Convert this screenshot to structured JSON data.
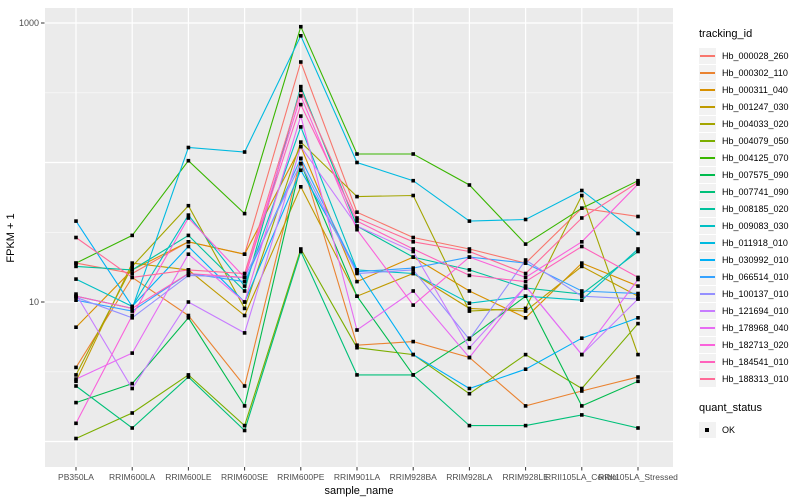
{
  "chart_data": {
    "type": "line",
    "title": "",
    "xlabel": "sample_name",
    "ylabel": "FPKM + 1",
    "y_scale": "log10",
    "ylim": [
      0.8,
      1250
    ],
    "grid": {
      "major_y": [
        1,
        10,
        100,
        1000
      ],
      "minor_y": [
        3.162,
        31.62,
        316.2
      ],
      "vertical_on_categories": true
    },
    "y_axis_ticks": [
      {
        "value": 1000,
        "label": "1000"
      },
      {
        "value": 10,
        "label": "10"
      }
    ],
    "legend_title": "tracking_id",
    "legend_position": "right",
    "quant_legend": {
      "title": "quant_status",
      "items": [
        {
          "label": "OK",
          "marker": "black-square"
        }
      ]
    },
    "panel_bg": "#EBEBEB",
    "grid_color": "#FFFFFF",
    "point_color": "#000000",
    "tick_label_color": "#4D4D4D",
    "categories": [
      "PB350LA",
      "RRIM600LA",
      "RRIM600LE",
      "RRIM600SE",
      "RRIM600PE",
      "RRIM901LA",
      "RRIM928BA",
      "RRIM928LA",
      "RRIM928LE",
      "RRII105LA_Control",
      "RRII105LA_Stressed"
    ],
    "series": [
      {
        "name": "Hb_000028_260",
        "color": "#F8766D",
        "values": [
          19,
          16,
          27,
          22,
          525,
          44,
          29,
          24,
          19,
          47,
          41
        ]
      },
      {
        "name": "Hb_000302_110",
        "color": "#EA8331",
        "values": [
          3.4,
          15,
          8,
          2.5,
          107,
          4.9,
          5.2,
          4,
          1.8,
          2.3,
          2.9
        ]
      },
      {
        "name": "Hb_000311_040",
        "color": "#D89000",
        "values": [
          6.6,
          17,
          27,
          22,
          130,
          14,
          21,
          12,
          7.7,
          19,
          13
        ]
      },
      {
        "name": "Hb_001247_030",
        "color": "#C09B00",
        "values": [
          2.7,
          19,
          17,
          8,
          67,
          11,
          16,
          9,
          8.6,
          18,
          11
        ]
      },
      {
        "name": "Hb_004033_020",
        "color": "#A3A500",
        "values": [
          3,
          18,
          49,
          9,
          140,
          57,
          58,
          8.6,
          9,
          58,
          4.2
        ]
      },
      {
        "name": "Hb_004079_050",
        "color": "#7CAE00",
        "values": [
          1.05,
          1.6,
          3,
          1.3,
          24,
          4.7,
          4.2,
          2.2,
          4.2,
          2.4,
          7
        ]
      },
      {
        "name": "Hb_004125_070",
        "color": "#39B600",
        "values": [
          19,
          30,
          103,
          43,
          940,
          115,
          115,
          69,
          26,
          47,
          74
        ]
      },
      {
        "name": "Hb_007575_090",
        "color": "#00BB4E",
        "values": [
          1.9,
          2.6,
          7.7,
          1.8,
          98,
          11,
          3,
          5.5,
          11,
          1.8,
          2.7
        ]
      },
      {
        "name": "Hb_007741_090",
        "color": "#00C079",
        "values": [
          2.5,
          1.25,
          2.9,
          1.2,
          23,
          3,
          3,
          1.3,
          1.3,
          1.55,
          1.25
        ]
      },
      {
        "name": "Hb_008185_020",
        "color": "#00C19C",
        "values": [
          18,
          17,
          30,
          12,
          350,
          35,
          21,
          17,
          12.6,
          11.4,
          23
        ]
      },
      {
        "name": "Hb_009083_030",
        "color": "#00BFC4",
        "values": [
          14.6,
          9.3,
          42,
          13,
          180,
          17,
          16,
          9.8,
          11,
          10.3,
          24
        ]
      },
      {
        "name": "Hb_011918_010",
        "color": "#00BAE0",
        "values": [
          11,
          9,
          128,
          119,
          810,
          100,
          74,
          38,
          39,
          63,
          31
        ]
      },
      {
        "name": "Hb_030992_010",
        "color": "#00B0F6",
        "values": [
          38,
          9.3,
          25,
          10,
          88,
          17,
          4.2,
          2.4,
          3.3,
          5.5,
          7.7
        ]
      },
      {
        "name": "Hb_066514_010",
        "color": "#35A2FF",
        "values": [
          10.3,
          8.6,
          16,
          14,
          107,
          16.5,
          17.5,
          21,
          19,
          12,
          11.5
        ]
      },
      {
        "name": "Hb_100137_010",
        "color": "#9590FF",
        "values": [
          10.8,
          7.7,
          15.5,
          15,
          98,
          16,
          17,
          5.4,
          20,
          11,
          10.5
        ]
      },
      {
        "name": "Hb_121694_010",
        "color": "#C77CFF",
        "values": [
          11.4,
          2.4,
          10,
          6,
          130,
          35,
          23,
          4.7,
          13,
          4.2,
          10.5
        ]
      },
      {
        "name": "Hb_178968_040",
        "color": "#E76BF3",
        "values": [
          2.8,
          4.3,
          22,
          10,
          215,
          6.3,
          12,
          4,
          13,
          4.2,
          14.5
        ]
      },
      {
        "name": "Hb_182713_020",
        "color": "#FA62DB",
        "values": [
          1.35,
          8,
          40,
          15,
          300,
          33,
          9.5,
          21,
          15,
          27,
          70
        ]
      },
      {
        "name": "Hb_184541_010",
        "color": "#FF62BC",
        "values": [
          11,
          9,
          16,
          15,
          260,
          38,
          24,
          15.5,
          14,
          25,
          15
        ]
      },
      {
        "name": "Hb_188313_010",
        "color": "#FF6A98",
        "values": [
          29,
          15,
          17,
          16,
          330,
          40,
          27,
          23,
          16,
          40,
          72
        ]
      }
    ]
  }
}
